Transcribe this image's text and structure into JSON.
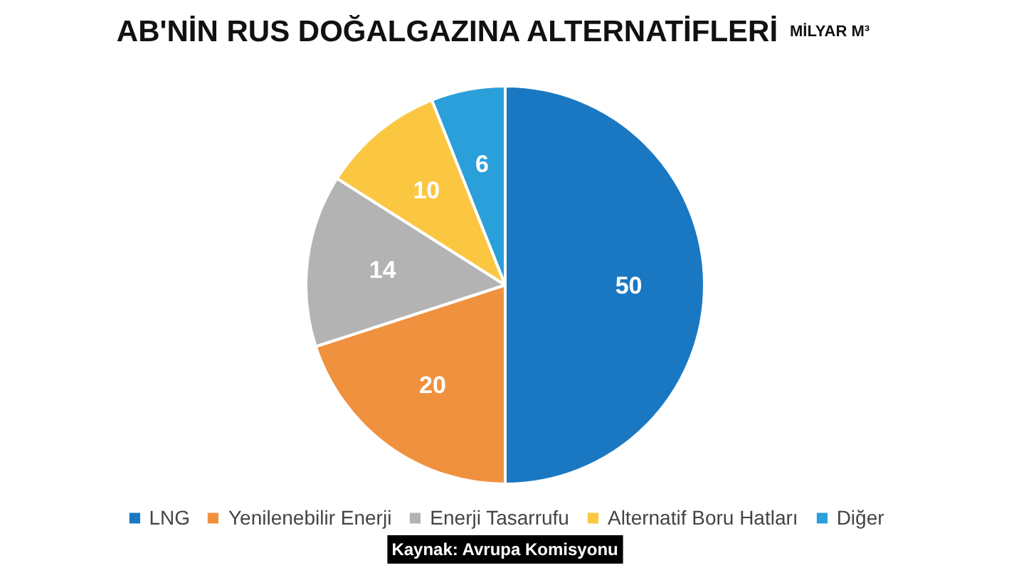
{
  "chart_data": {
    "type": "pie",
    "title": "AB'NİN RUS DOĞALGAZINA ALTERNATİFLERİ",
    "subtitle": "MİLYAR M³",
    "categories": [
      "LNG",
      "Yenilenebilir Enerji",
      "Enerji Tasarrufu",
      "Alternatif Boru Hatları",
      "Diğer"
    ],
    "values": [
      50,
      20,
      14,
      10,
      6
    ],
    "colors": [
      "#1a78c2",
      "#f0913f",
      "#b3b3b3",
      "#fbc741",
      "#2a9fd9"
    ],
    "data_labels": true,
    "legend": "bottom",
    "annotations": [
      "Kaynak: Avrupa Komisyonu"
    ]
  }
}
